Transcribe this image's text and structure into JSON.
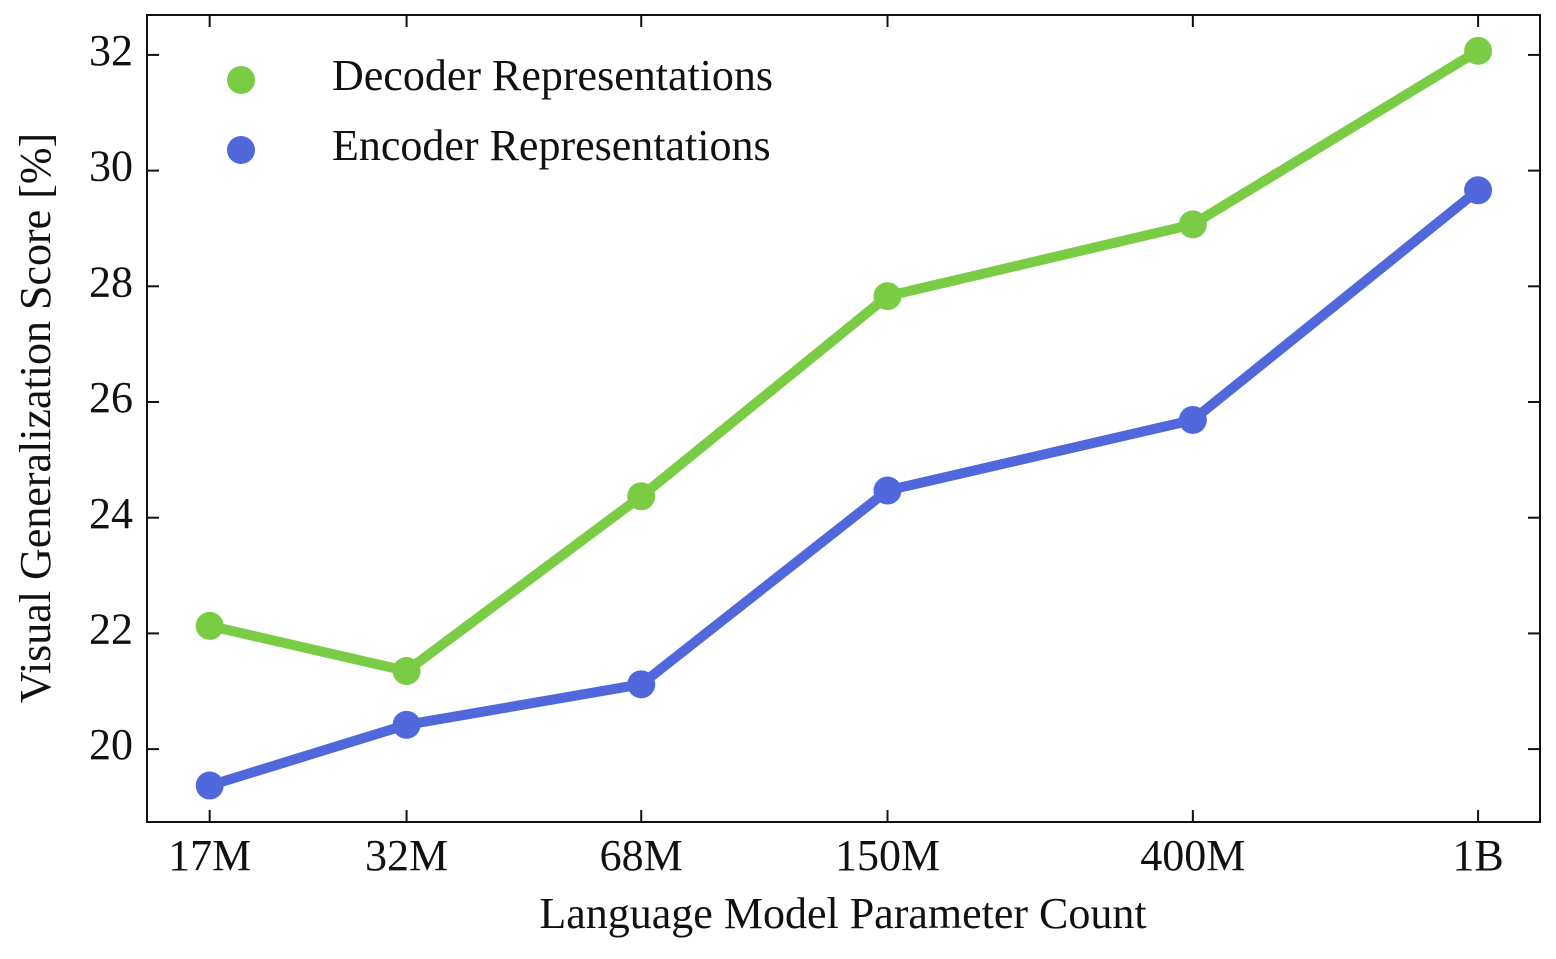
{
  "chart_data": {
    "type": "line",
    "xlabel": "Language Model Parameter Count",
    "ylabel": "Visual Generalization Score [%]",
    "xscale": "log",
    "x": [
      17000000,
      32000000,
      68000000,
      150000000,
      400000000,
      1000000000
    ],
    "series": [
      {
        "name": "Decoder Representations",
        "color": "#7acc44",
        "values": [
          22.13,
          21.35,
          24.37,
          27.83,
          29.07,
          32.07
        ]
      },
      {
        "name": "Encoder Representations",
        "color": "#5068dc",
        "values": [
          19.37,
          20.42,
          21.12,
          24.47,
          25.69,
          29.66
        ]
      }
    ],
    "xlim": [
      13900000,
      1220000000
    ],
    "xticks": [
      {
        "value": 17000000,
        "label": "17M"
      },
      {
        "value": 32000000,
        "label": "32M"
      },
      {
        "value": 68000000,
        "label": "68M"
      },
      {
        "value": 150000000,
        "label": "150M"
      },
      {
        "value": 400000000,
        "label": "400M"
      },
      {
        "value": 1000000000,
        "label": "1B"
      }
    ],
    "ylim": [
      18.74,
      32.69
    ],
    "yticks": [
      20,
      22,
      24,
      26,
      28,
      30,
      32
    ],
    "grid": false,
    "legend": "upper left"
  }
}
